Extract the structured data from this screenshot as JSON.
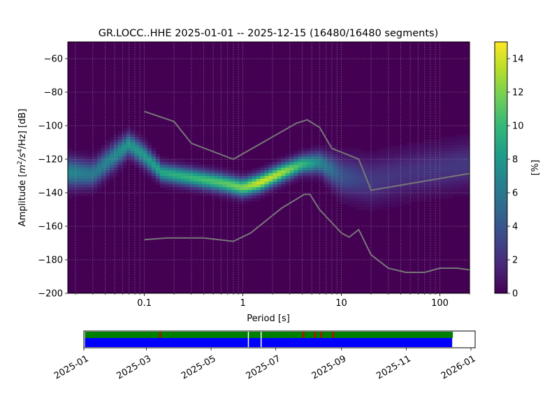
{
  "chart_data": {
    "type": "heatmap",
    "title": "GR.LOCC..HHE   2025-01-01 -- 2025-12-15  (16480/16480 segments)",
    "xlabel": "Period [s]",
    "ylabel": "Amplitude [m²/s⁴/Hz] [dB]",
    "ylabel_parts": {
      "prefix": "Amplitude [",
      "m": "m",
      "sup2": "2",
      "s": "/s",
      "sup4": "4",
      "hz": "/Hz] [dB]"
    },
    "x_scale": "log",
    "xlim": [
      0.0167,
      200
    ],
    "ylim": [
      -200,
      -50
    ],
    "x_ticks": [
      {
        "value": 0.1,
        "label": "0.1"
      },
      {
        "value": 1,
        "label": "1"
      },
      {
        "value": 10,
        "label": "10"
      },
      {
        "value": 100,
        "label": "100"
      }
    ],
    "y_ticks": [
      {
        "value": -60,
        "label": "−60"
      },
      {
        "value": -80,
        "label": "−80"
      },
      {
        "value": -100,
        "label": "−100"
      },
      {
        "value": -120,
        "label": "−120"
      },
      {
        "value": -140,
        "label": "−140"
      },
      {
        "value": -160,
        "label": "−160"
      },
      {
        "value": -180,
        "label": "−180"
      },
      {
        "value": -200,
        "label": "−200"
      }
    ],
    "grid": true,
    "colorbar": {
      "label": "[%]",
      "range": [
        0,
        15
      ],
      "ticks": [
        {
          "value": 0,
          "label": "0"
        },
        {
          "value": 2,
          "label": "2"
        },
        {
          "value": 4,
          "label": "4"
        },
        {
          "value": 6,
          "label": "6"
        },
        {
          "value": 8,
          "label": "8"
        },
        {
          "value": 10,
          "label": "10"
        },
        {
          "value": 12,
          "label": "12"
        },
        {
          "value": 14,
          "label": "14"
        }
      ],
      "colormap": [
        "#440154",
        "#482878",
        "#3e4989",
        "#31688e",
        "#26828e",
        "#1f9e89",
        "#35b779",
        "#6ece58",
        "#b5de2b",
        "#fde725"
      ]
    },
    "density_ridge": [
      {
        "period": 0.0167,
        "db": -128,
        "width": 8,
        "peak": 7
      },
      {
        "period": 0.03,
        "db": -129,
        "width": 7,
        "peak": 6
      },
      {
        "period": 0.05,
        "db": -118,
        "width": 7,
        "peak": 7
      },
      {
        "period": 0.07,
        "db": -111,
        "width": 6,
        "peak": 8
      },
      {
        "period": 0.1,
        "db": -118,
        "width": 6,
        "peak": 8
      },
      {
        "period": 0.15,
        "db": -128,
        "width": 5,
        "peak": 9
      },
      {
        "period": 0.3,
        "db": -131,
        "width": 5,
        "peak": 10
      },
      {
        "period": 0.6,
        "db": -134,
        "width": 5,
        "peak": 11
      },
      {
        "period": 1.0,
        "db": -137,
        "width": 5,
        "peak": 12
      },
      {
        "period": 1.5,
        "db": -134,
        "width": 5,
        "peak": 14
      },
      {
        "period": 2.5,
        "db": -128,
        "width": 5,
        "peak": 13
      },
      {
        "period": 4.0,
        "db": -123,
        "width": 5,
        "peak": 10
      },
      {
        "period": 6.0,
        "db": -122,
        "width": 6,
        "peak": 7
      },
      {
        "period": 10.0,
        "db": -130,
        "width": 10,
        "peak": 4
      },
      {
        "period": 20.0,
        "db": -133,
        "width": 12,
        "peak": 2.5
      },
      {
        "period": 50.0,
        "db": -128,
        "width": 12,
        "peak": 2.2
      },
      {
        "period": 200.0,
        "db": -123,
        "width": 12,
        "peak": 2.5
      }
    ],
    "series": [
      {
        "x": [
          0.1,
          0.2,
          0.3,
          0.8,
          3.5,
          4.5,
          6,
          8,
          15,
          20,
          200
        ],
        "y": [
          -91.5,
          -97.5,
          -110.5,
          -120,
          -98.5,
          -96.5,
          -101,
          -113.5,
          -120,
          -138.5,
          -128.5
        ]
      },
      {
        "x": [
          0.1,
          0.17,
          0.4,
          0.8,
          1.2,
          2.5,
          4.2,
          4.8,
          6,
          10,
          12,
          15,
          20,
          30,
          45,
          70,
          100,
          150,
          200
        ],
        "y": [
          -168,
          -167,
          -167,
          -169,
          -164,
          -149,
          -141,
          -141,
          -150,
          -164,
          -166.5,
          -162,
          -177,
          -185,
          -187.5,
          -187.5,
          -185,
          -185,
          -186
        ]
      }
    ]
  },
  "timeline": {
    "date_range": [
      "2025-01-01",
      "2026-01-05"
    ],
    "data_range": [
      "2025-01-02",
      "2025-12-15"
    ],
    "gap_marks": [
      "2025-06-05",
      "2025-06-17"
    ],
    "flag_marks": [
      "2025-03-14",
      "2025-08-07",
      "2025-08-13",
      "2025-07-27",
      "2025-08-24"
    ],
    "colors": {
      "coverage": "#0000ff",
      "ok": "#008000",
      "flag": "#cc0000"
    },
    "tick_labels": [
      {
        "date": "2025-01-01",
        "label": "2025-01"
      },
      {
        "date": "2025-03-01",
        "label": "2025-03"
      },
      {
        "date": "2025-05-01",
        "label": "2025-05"
      },
      {
        "date": "2025-07-01",
        "label": "2025-07"
      },
      {
        "date": "2025-09-01",
        "label": "2025-09"
      },
      {
        "date": "2025-11-01",
        "label": "2025-11"
      },
      {
        "date": "2026-01-01",
        "label": "2026-01"
      }
    ]
  }
}
